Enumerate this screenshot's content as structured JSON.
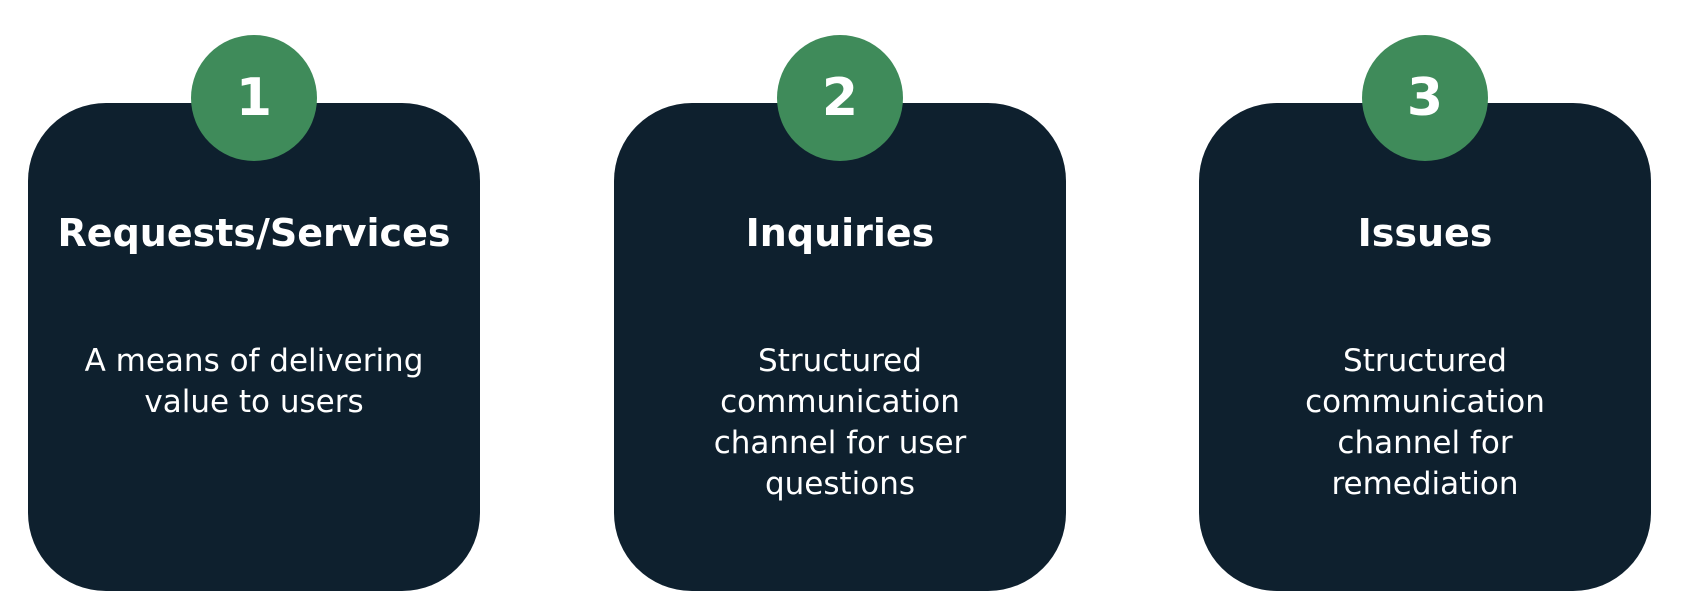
{
  "colors": {
    "card_background": "#0e202e",
    "badge_green": "#3f8b5a",
    "text": "#ffffff",
    "page_background": "#ffffff"
  },
  "cards": [
    {
      "number": "1",
      "title": "Requests/Services",
      "description": "A means of delivering value to users"
    },
    {
      "number": "2",
      "title": "Inquiries",
      "description": "Structured communication channel for user questions"
    },
    {
      "number": "3",
      "title": "Issues",
      "description": "Structured communication channel for remediation"
    }
  ]
}
